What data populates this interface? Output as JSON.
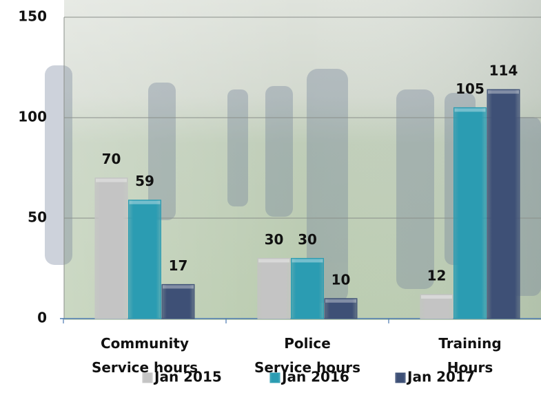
{
  "chart_data": {
    "type": "bar",
    "categories": [
      [
        "Community",
        "Service hours"
      ],
      [
        "Police",
        "Service hours"
      ],
      [
        "Training",
        "Hours"
      ]
    ],
    "series": [
      {
        "name": "Jan 2015",
        "color": "#c4c4c4",
        "values": [
          70,
          30,
          12
        ]
      },
      {
        "name": "Jan 2016",
        "color": "#2b9cb2",
        "values": [
          59,
          30,
          105
        ]
      },
      {
        "name": "Jan 2017",
        "color": "#3e5076",
        "values": [
          17,
          10,
          114
        ]
      }
    ],
    "ylim": [
      0,
      150
    ],
    "yticks": [
      0,
      50,
      100,
      150
    ],
    "grid": true,
    "legend": "bottom"
  }
}
